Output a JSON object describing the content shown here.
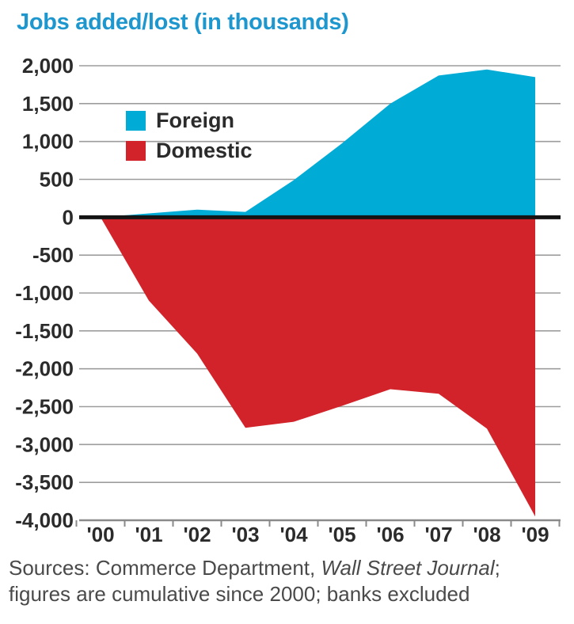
{
  "title": "Jobs added/lost (in thousands)",
  "colors": {
    "title": "#1d97ce",
    "foreign": "#00ABD6",
    "domestic": "#D2232A",
    "grid": "#9d9d9d",
    "axis": "#8a8a8a",
    "zero_line": "#141414",
    "tick_text": "#2b2b2b"
  },
  "legend": {
    "foreign_label": "Foreign",
    "domestic_label": "Domestic"
  },
  "source": {
    "prefix": "Sources: Commerce Department, ",
    "italic": "Wall Street Journal",
    "after_italic": ";",
    "line2": "figures are cumulative since 2000; banks excluded"
  },
  "chart_data": {
    "type": "area",
    "title": "Jobs added/lost (in thousands)",
    "categories": [
      "'00",
      "'01",
      "'02",
      "'03",
      "'04",
      "'05",
      "'06",
      "'07",
      "'08",
      "'09"
    ],
    "series": [
      {
        "name": "Foreign",
        "color": "#00ABD6",
        "values": [
          0,
          50,
          100,
          70,
          490,
          975,
          1500,
          1870,
          1950,
          1850
        ]
      },
      {
        "name": "Domestic",
        "color": "#D2232A",
        "values": [
          0,
          -1100,
          -1800,
          -2780,
          -2700,
          -2490,
          -2270,
          -2330,
          -2790,
          -3950
        ]
      }
    ],
    "xlabel": "",
    "ylabel": "",
    "ylim": [
      -4000,
      2000
    ],
    "ytick_step": 500,
    "y_ticks": [
      2000,
      1500,
      1000,
      500,
      0,
      -500,
      -1000,
      -1500,
      -2000,
      -2500,
      -3000,
      -3500,
      -4000
    ],
    "y_tick_labels": [
      "2,000",
      "1,500",
      "1,000",
      "500",
      "0",
      "-500",
      "-1,000",
      "-1,500",
      "-2,000",
      "-2,500",
      "-3,000",
      "-3,500",
      "-4,000"
    ],
    "grid": true,
    "baseline": 0,
    "legend_position": "top-left-inside"
  }
}
